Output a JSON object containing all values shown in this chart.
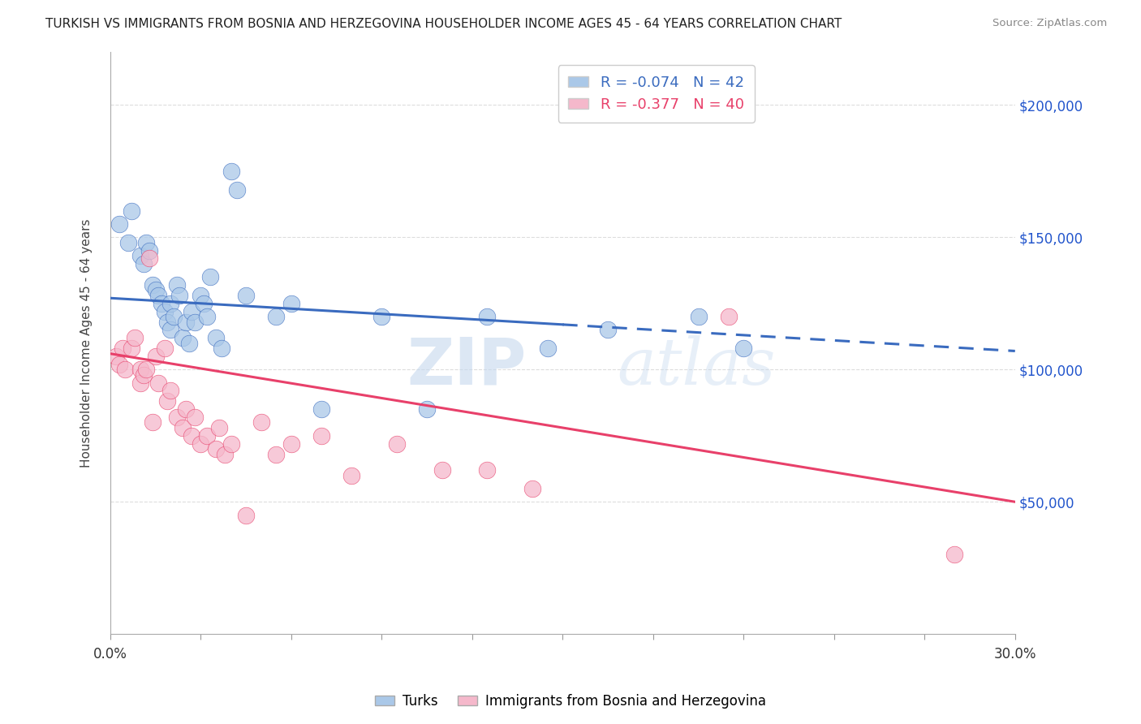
{
  "title": "TURKISH VS IMMIGRANTS FROM BOSNIA AND HERZEGOVINA HOUSEHOLDER INCOME AGES 45 - 64 YEARS CORRELATION CHART",
  "source": "Source: ZipAtlas.com",
  "ylabel": "Householder Income Ages 45 - 64 years",
  "ytick_labels": [
    "$50,000",
    "$100,000",
    "$150,000",
    "$200,000"
  ],
  "ytick_vals": [
    50000,
    100000,
    150000,
    200000
  ],
  "xlim": [
    0.0,
    30.0
  ],
  "ylim": [
    0,
    220000
  ],
  "legend_r_blue": "R = -0.074",
  "legend_n_blue": "N = 42",
  "legend_r_pink": "R = -0.377",
  "legend_n_pink": "N = 40",
  "blue_color": "#aac8e8",
  "pink_color": "#f5b8cb",
  "blue_line_color": "#3a6bbf",
  "pink_line_color": "#e8406a",
  "blue_dots_x": [
    0.3,
    0.6,
    0.7,
    1.0,
    1.1,
    1.2,
    1.3,
    1.4,
    1.5,
    1.6,
    1.7,
    1.8,
    1.9,
    2.0,
    2.0,
    2.1,
    2.2,
    2.3,
    2.4,
    2.5,
    2.6,
    2.7,
    2.8,
    3.0,
    3.1,
    3.2,
    3.3,
    3.5,
    3.7,
    4.0,
    4.2,
    4.5,
    5.5,
    6.0,
    7.0,
    9.0,
    10.5,
    12.5,
    14.5,
    16.5,
    19.5,
    21.0
  ],
  "blue_dots_y": [
    155000,
    148000,
    160000,
    143000,
    140000,
    148000,
    145000,
    132000,
    130000,
    128000,
    125000,
    122000,
    118000,
    125000,
    115000,
    120000,
    132000,
    128000,
    112000,
    118000,
    110000,
    122000,
    118000,
    128000,
    125000,
    120000,
    135000,
    112000,
    108000,
    175000,
    168000,
    128000,
    120000,
    125000,
    85000,
    120000,
    85000,
    120000,
    108000,
    115000,
    120000,
    108000
  ],
  "pink_dots_x": [
    0.2,
    0.3,
    0.4,
    0.5,
    0.7,
    0.8,
    1.0,
    1.0,
    1.1,
    1.2,
    1.3,
    1.4,
    1.5,
    1.6,
    1.8,
    1.9,
    2.0,
    2.2,
    2.4,
    2.5,
    2.7,
    2.8,
    3.0,
    3.2,
    3.5,
    3.6,
    3.8,
    4.0,
    4.5,
    5.0,
    5.5,
    6.0,
    7.0,
    8.0,
    9.5,
    11.0,
    12.5,
    14.0,
    20.5,
    28.0
  ],
  "pink_dots_y": [
    105000,
    102000,
    108000,
    100000,
    108000,
    112000,
    100000,
    95000,
    98000,
    100000,
    142000,
    80000,
    105000,
    95000,
    108000,
    88000,
    92000,
    82000,
    78000,
    85000,
    75000,
    82000,
    72000,
    75000,
    70000,
    78000,
    68000,
    72000,
    45000,
    80000,
    68000,
    72000,
    75000,
    60000,
    72000,
    62000,
    62000,
    55000,
    120000,
    30000
  ],
  "watermark_zip": "ZIP",
  "watermark_atlas": "atlas",
  "background_color": "#ffffff",
  "grid_color": "#dddddd",
  "blue_solid_end": 15.0,
  "xtick_minor": [
    0,
    3,
    6,
    9,
    12,
    15,
    18,
    21,
    24,
    27,
    30
  ]
}
